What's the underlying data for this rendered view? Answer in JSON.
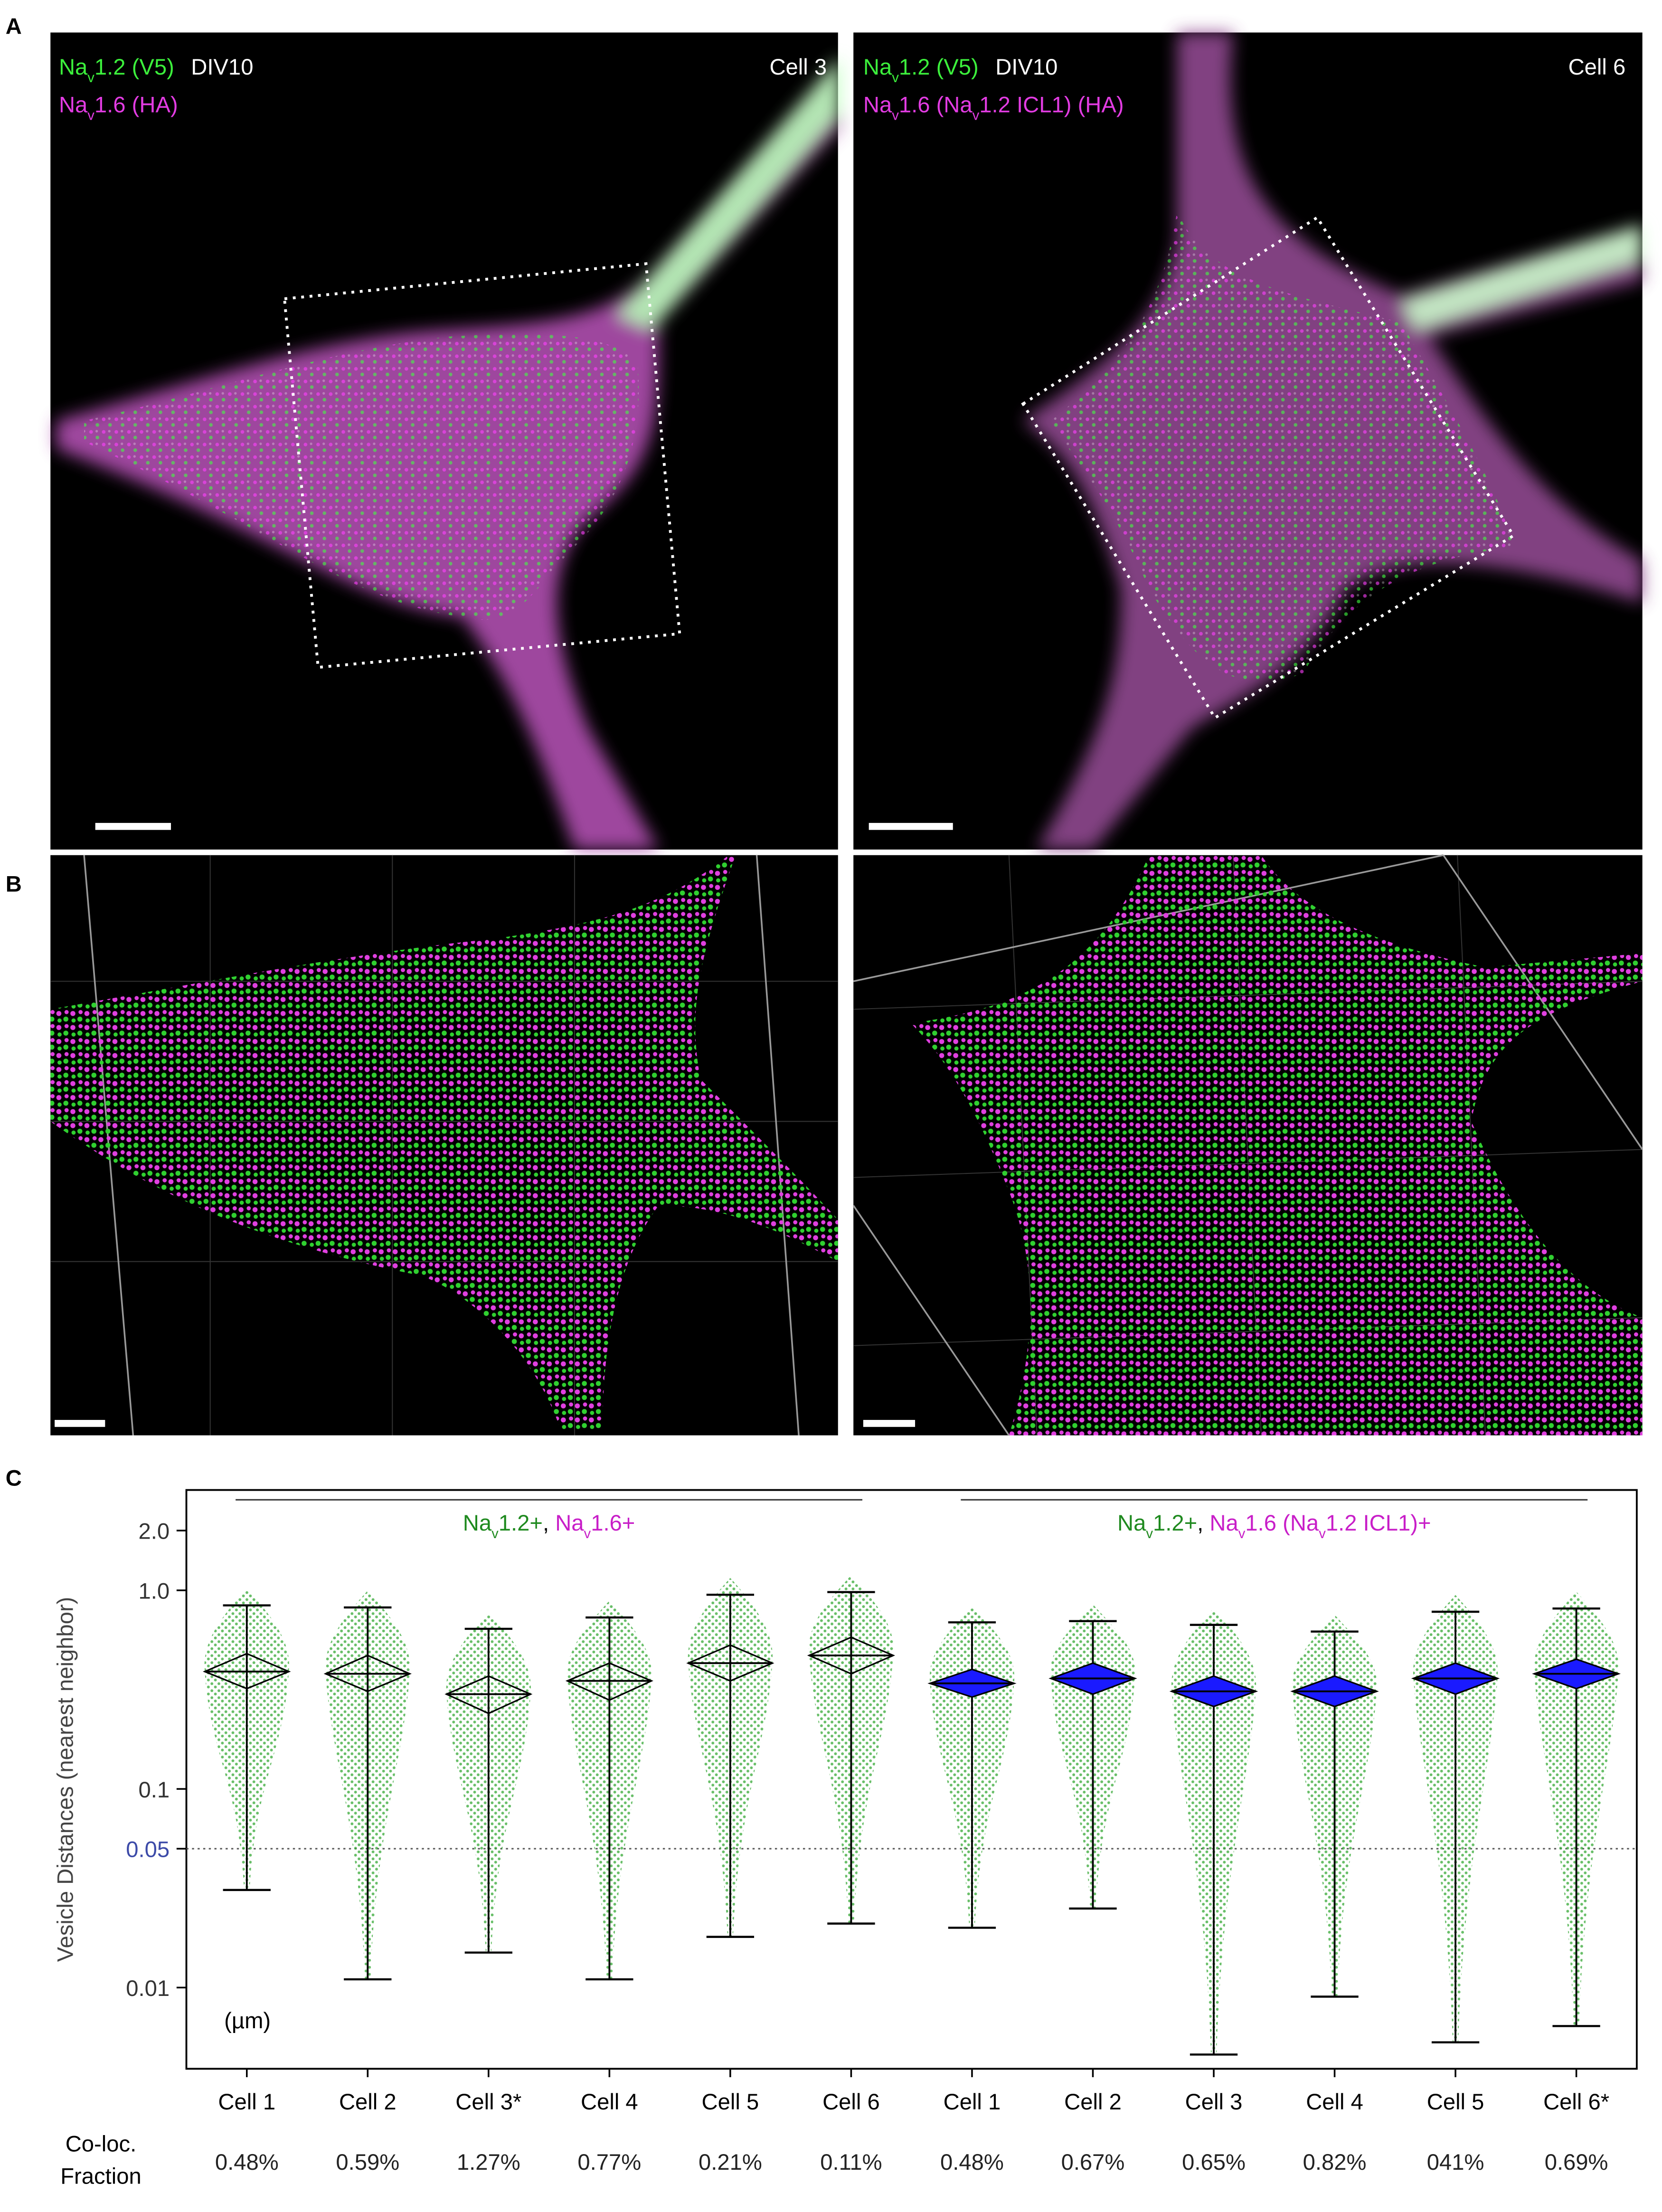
{
  "panel_labels": [
    "A",
    "B",
    "C"
  ],
  "images": [
    {
      "line1": [
        {
          "text": "Na",
          "color": "#3cf03c"
        },
        {
          "text": "v",
          "color": "#3cf03c",
          "sub": true
        },
        {
          "text": "1.2 (V5)",
          "color": "#3cf03c"
        }
      ],
      "line1_extra": "DIV10",
      "line2": [
        {
          "text": "Na",
          "color": "#e33ce3"
        },
        {
          "text": "v",
          "color": "#e33ce3",
          "sub": true
        },
        {
          "text": "1.6 (HA)",
          "color": "#e33ce3"
        }
      ],
      "cell": "Cell 3"
    },
    {
      "line1": [
        {
          "text": "Na",
          "color": "#3cf03c"
        },
        {
          "text": "v",
          "color": "#3cf03c",
          "sub": true
        },
        {
          "text": "1.2 (V5)",
          "color": "#3cf03c"
        }
      ],
      "line1_extra": "DIV10",
      "line2": [
        {
          "text": "Na",
          "color": "#e33ce3"
        },
        {
          "text": "v",
          "color": "#e33ce3",
          "sub": true
        },
        {
          "text": "1.6 (Na",
          "color": "#e33ce3"
        },
        {
          "text": "v",
          "color": "#e33ce3",
          "sub": true
        },
        {
          "text": "1.2 ICL1) (HA)",
          "color": "#e33ce3"
        }
      ],
      "cell": "Cell 6"
    }
  ],
  "chart_data": {
    "type": "box",
    "y_label": "Vesicle Distances (nearest neighbor)",
    "unit_note": "(µm)",
    "row_label": [
      "Co-loc.",
      "Fraction"
    ],
    "log_scale": true,
    "ylim": [
      0.0039,
      3.2
    ],
    "yticks": [
      0.01,
      0.05,
      0.1,
      {
        "value": 1,
        "label": "1.0"
      },
      {
        "value": 2,
        "label": "2.0"
      }
    ],
    "reference_line": 0.05,
    "reference_color": "#3c4aa8",
    "point_color": "#2f9a2f",
    "groups": [
      {
        "label": [
          {
            "text": "Na",
            "color": "#1f8a1f"
          },
          {
            "text": "v",
            "color": "#1f8a1f",
            "sub": true
          },
          {
            "text": "1.2+",
            "color": "#1f8a1f"
          },
          {
            "text": ", ",
            "color": "#000000"
          },
          {
            "text": "Na",
            "color": "#c81ec8"
          },
          {
            "text": "v",
            "color": "#c81ec8",
            "sub": true
          },
          {
            "text": "1.6+",
            "color": "#c81ec8"
          }
        ],
        "diamond_fill": "none",
        "categories": [
          "Cell 1",
          "Cell 2",
          "Cell 3*",
          "Cell 4",
          "Cell 5",
          "Cell 6"
        ],
        "max": [
          0.84,
          0.82,
          0.64,
          0.73,
          0.95,
          0.98
        ],
        "mean": [
          0.39,
          0.38,
          0.3,
          0.35,
          0.43,
          0.47
        ],
        "ci_high": [
          0.48,
          0.47,
          0.37,
          0.43,
          0.53,
          0.58
        ],
        "ci_low": [
          0.32,
          0.31,
          0.24,
          0.28,
          0.35,
          0.38
        ],
        "min": [
          0.031,
          0.011,
          0.015,
          0.011,
          0.018,
          0.021
        ],
        "colocalization": [
          "0.48%",
          "0.59%",
          "1.27%",
          "0.77%",
          "0.21%",
          "0.11%"
        ]
      },
      {
        "label": [
          {
            "text": "Na",
            "color": "#1f8a1f"
          },
          {
            "text": "v",
            "color": "#1f8a1f",
            "sub": true
          },
          {
            "text": "1.2+",
            "color": "#1f8a1f"
          },
          {
            "text": ", ",
            "color": "#000000"
          },
          {
            "text": "Na",
            "color": "#c81ec8"
          },
          {
            "text": "v",
            "color": "#c81ec8",
            "sub": true
          },
          {
            "text": "1.6 (Na",
            "color": "#c81ec8"
          },
          {
            "text": "v",
            "color": "#c81ec8",
            "sub": true
          },
          {
            "text": "1.2 ICL1)+",
            "color": "#c81ec8"
          }
        ],
        "diamond_fill": "#1a1aff",
        "categories": [
          "Cell 1",
          "Cell 2",
          "Cell 3",
          "Cell 4",
          "Cell 5",
          "Cell 6*"
        ],
        "max": [
          0.69,
          0.7,
          0.67,
          0.62,
          0.78,
          0.81
        ],
        "mean": [
          0.34,
          0.36,
          0.31,
          0.31,
          0.36,
          0.38
        ],
        "ci_high": [
          0.4,
          0.43,
          0.37,
          0.37,
          0.43,
          0.45
        ],
        "ci_low": [
          0.29,
          0.3,
          0.26,
          0.26,
          0.3,
          0.32
        ],
        "min": [
          0.02,
          0.025,
          0.0046,
          0.009,
          0.0053,
          0.0064
        ],
        "colocalization": [
          "0.48%",
          "0.67%",
          "0.65%",
          "0.82%",
          "041%",
          "0.69%"
        ]
      }
    ]
  }
}
